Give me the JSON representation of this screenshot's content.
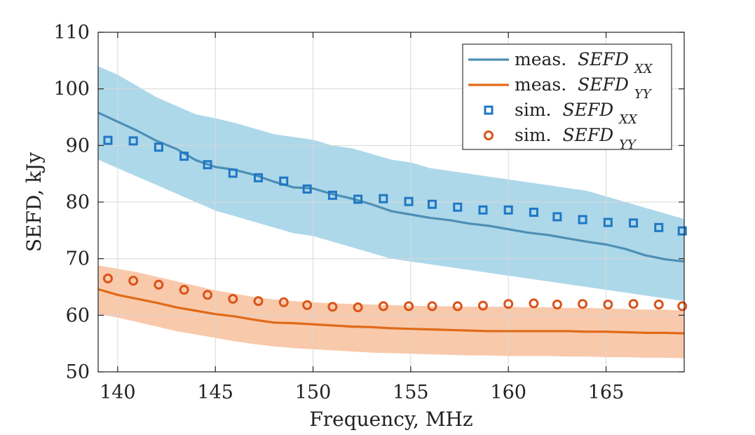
{
  "chart_data": {
    "type": "line",
    "xlabel": "Frequency, MHz",
    "ylabel": "SEFD, kJy",
    "xlim": [
      139,
      169
    ],
    "ylim": [
      50,
      110
    ],
    "xticks": [
      140,
      145,
      150,
      155,
      160,
      165
    ],
    "yticks": [
      50,
      60,
      70,
      80,
      90,
      100,
      110
    ],
    "grid": true,
    "legend_position": "top-right",
    "legend": [
      {
        "id": "meas_xx",
        "prefix": "meas.",
        "math": "SEFD",
        "subscript": "XX",
        "marker": "line",
        "color": "#4d8fb5"
      },
      {
        "id": "meas_yy",
        "prefix": "meas.",
        "math": "SEFD",
        "subscript": "YY",
        "marker": "line",
        "color": "#e06a18"
      },
      {
        "id": "sim_xx",
        "prefix": "sim.",
        "math": "SEFD",
        "subscript": "XX",
        "marker": "square",
        "color": "#1f77c4"
      },
      {
        "id": "sim_yy",
        "prefix": "sim.",
        "math": "SEFD",
        "subscript": "YY",
        "marker": "circle",
        "color": "#d95319"
      }
    ],
    "series": [
      {
        "name": "meas. SEFD_XX",
        "type": "line",
        "color": "#4d8fb5",
        "x": [
          139,
          140,
          141,
          142,
          143,
          144,
          145,
          146,
          147,
          148,
          149,
          150,
          151,
          152,
          153,
          154,
          155,
          156,
          157,
          158,
          159,
          160,
          161,
          162,
          163,
          164,
          165,
          166,
          167,
          168,
          169
        ],
        "y": [
          95.8,
          94.2,
          92.6,
          90.8,
          89.4,
          87.4,
          86.2,
          85.7,
          84.8,
          83.6,
          82.6,
          82.4,
          81.4,
          80.6,
          79.6,
          78.4,
          77.8,
          77.2,
          76.8,
          76.2,
          75.8,
          75.2,
          74.6,
          74.2,
          73.6,
          73.0,
          72.5,
          71.7,
          70.6,
          69.9,
          69.5
        ]
      },
      {
        "name": "meas. SEFD_XX spread",
        "type": "area",
        "color": "#add8ea",
        "x": [
          139,
          140,
          141,
          142,
          143,
          144,
          145,
          146,
          147,
          148,
          149,
          150,
          151,
          152,
          153,
          154,
          155,
          156,
          157,
          158,
          159,
          160,
          161,
          162,
          163,
          164,
          165,
          166,
          167,
          168,
          169
        ],
        "y_upper": [
          104.0,
          102.5,
          100.5,
          98.5,
          97.0,
          95.5,
          94.8,
          94.0,
          93.0,
          92.0,
          91.5,
          91.0,
          90.0,
          89.5,
          88.5,
          87.5,
          87.0,
          86.0,
          85.5,
          85.0,
          84.5,
          84.0,
          83.5,
          83.0,
          82.5,
          82.0,
          81.0,
          80.0,
          79.0,
          78.0,
          77.0
        ],
        "y_lower": [
          87.5,
          86.0,
          84.5,
          83.0,
          81.5,
          80.0,
          78.5,
          77.5,
          76.5,
          75.5,
          74.5,
          74.0,
          73.0,
          72.0,
          71.0,
          70.0,
          69.5,
          69.0,
          68.5,
          68.0,
          67.5,
          67.0,
          66.5,
          66.0,
          65.5,
          65.0,
          64.5,
          64.0,
          63.5,
          63.0,
          62.5
        ]
      },
      {
        "name": "meas. SEFD_YY",
        "type": "line",
        "color": "#e06a18",
        "x": [
          139,
          140,
          141,
          142,
          143,
          144,
          145,
          146,
          147,
          148,
          149,
          150,
          151,
          152,
          153,
          154,
          155,
          156,
          157,
          158,
          159,
          160,
          161,
          162,
          163,
          164,
          165,
          166,
          167,
          168,
          169
        ],
        "y": [
          64.6,
          63.6,
          62.9,
          62.2,
          61.4,
          60.8,
          60.2,
          59.8,
          59.2,
          58.7,
          58.6,
          58.4,
          58.2,
          58.0,
          57.9,
          57.7,
          57.6,
          57.5,
          57.4,
          57.3,
          57.2,
          57.2,
          57.2,
          57.2,
          57.2,
          57.1,
          57.1,
          57.0,
          56.9,
          56.9,
          56.8
        ]
      },
      {
        "name": "meas. SEFD_YY spread",
        "type": "area",
        "color": "#f9c9ab",
        "x": [
          139,
          140,
          141,
          142,
          143,
          144,
          145,
          146,
          147,
          148,
          149,
          150,
          151,
          152,
          153,
          154,
          155,
          156,
          157,
          158,
          159,
          160,
          161,
          162,
          163,
          164,
          165,
          166,
          167,
          168,
          169
        ],
        "y_upper": [
          68.8,
          68.2,
          67.6,
          66.8,
          66.0,
          65.2,
          64.4,
          63.8,
          63.2,
          62.8,
          62.5,
          62.3,
          62.1,
          62.0,
          61.9,
          61.8,
          61.7,
          61.6,
          61.6,
          61.5,
          61.5,
          61.5,
          61.4,
          61.4,
          61.3,
          61.3,
          61.2,
          61.1,
          61.0,
          61.0,
          60.8
        ],
        "y_lower": [
          60.2,
          59.6,
          58.8,
          58.0,
          57.2,
          56.6,
          56.0,
          55.4,
          54.9,
          54.5,
          54.2,
          54.0,
          53.8,
          53.6,
          53.4,
          53.3,
          53.2,
          53.1,
          53.0,
          52.9,
          52.9,
          52.8,
          52.8,
          52.8,
          52.7,
          52.7,
          52.6,
          52.6,
          52.5,
          52.5,
          52.4
        ]
      },
      {
        "name": "sim. SEFD_XX",
        "type": "scatter",
        "marker": "square",
        "color": "#1f77c4",
        "x": [
          139.5,
          140.8,
          142.1,
          143.4,
          144.6,
          145.9,
          147.2,
          148.5,
          149.7,
          151.0,
          152.3,
          153.6,
          154.9,
          156.1,
          157.4,
          158.7,
          160.0,
          161.3,
          162.5,
          163.8,
          165.1,
          166.4,
          167.7,
          168.9
        ],
        "y": [
          90.9,
          90.8,
          89.7,
          88.1,
          86.6,
          85.1,
          84.3,
          83.7,
          82.3,
          81.2,
          80.5,
          80.6,
          80.1,
          79.6,
          79.1,
          78.6,
          78.6,
          78.2,
          77.4,
          76.9,
          76.4,
          76.3,
          75.5,
          74.9
        ]
      },
      {
        "name": "sim. SEFD_YY",
        "type": "scatter",
        "marker": "circle",
        "color": "#d95319",
        "x": [
          139.5,
          140.8,
          142.1,
          143.4,
          144.6,
          145.9,
          147.2,
          148.5,
          149.7,
          151.0,
          152.3,
          153.6,
          154.9,
          156.1,
          157.4,
          158.7,
          160.0,
          161.3,
          162.5,
          163.8,
          165.1,
          166.4,
          167.7,
          168.9
        ],
        "y": [
          66.5,
          66.1,
          65.4,
          64.5,
          63.6,
          62.9,
          62.5,
          62.3,
          61.8,
          61.5,
          61.4,
          61.6,
          61.6,
          61.6,
          61.6,
          61.7,
          62.0,
          62.1,
          61.9,
          62.0,
          61.9,
          62.0,
          61.9,
          61.6
        ]
      }
    ]
  }
}
